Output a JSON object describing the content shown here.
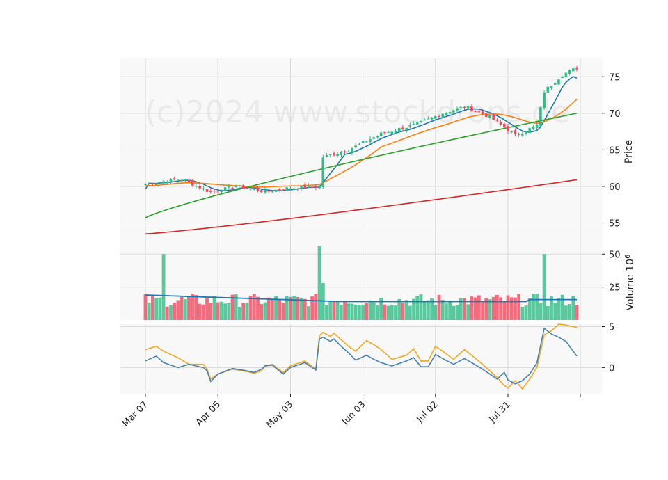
{
  "watermark": "(c)2024 www.stockdrops.de",
  "colors": {
    "up": "#2ebd85",
    "down": "#f6465d",
    "ma_short": "#1f77b4",
    "ma_mid": "#ff7f0e",
    "ma_long": "#2ca02c",
    "ma_200": "#d62728",
    "volume_ma": "#1f77b4",
    "osc_blue": "#4682b4",
    "osc_orange": "#f5a623",
    "panel_bg": "#f8f8f8",
    "grid": "#d9d9d9"
  },
  "chart_data": [
    {
      "type": "candlestick",
      "panel": "price",
      "ylabel": "Price",
      "ylim": [
        52,
        77.5
      ],
      "yticks": [
        55,
        60,
        65,
        70,
        75
      ],
      "x_tick_labels": [
        "Mar 07",
        "Apr 05",
        "May 03",
        "Jun 03",
        "Jul 02",
        "Jul 31",
        ""
      ],
      "x_tick_index": [
        0,
        20,
        40,
        60,
        80,
        100,
        120
      ],
      "n": 120,
      "key_closes": [
        {
          "i": 0,
          "close": 60.4
        },
        {
          "i": 10,
          "close": 61.0
        },
        {
          "i": 18,
          "close": 59.2
        },
        {
          "i": 25,
          "close": 60.0
        },
        {
          "i": 33,
          "close": 59.3
        },
        {
          "i": 40,
          "close": 59.8
        },
        {
          "i": 48,
          "close": 60.0
        },
        {
          "i": 49,
          "close": 64.0
        },
        {
          "i": 56,
          "close": 65.0
        },
        {
          "i": 60,
          "close": 66.0
        },
        {
          "i": 65,
          "close": 67.2
        },
        {
          "i": 75,
          "close": 68.5
        },
        {
          "i": 82,
          "close": 70.0
        },
        {
          "i": 88,
          "close": 70.9
        },
        {
          "i": 95,
          "close": 69.5
        },
        {
          "i": 102,
          "close": 67.0
        },
        {
          "i": 108,
          "close": 68.3
        },
        {
          "i": 110,
          "close": 73.0
        },
        {
          "i": 115,
          "close": 75.3
        },
        {
          "i": 119,
          "close": 76.2
        }
      ],
      "moving_averages": [
        {
          "key": "ma_short",
          "start": 59.6,
          "end": 74.8
        },
        {
          "key": "ma_mid",
          "start": 58.2,
          "end": 71.2
        },
        {
          "key": "ma_long",
          "start": 55.7,
          "end": 70.0
        },
        {
          "key": "ma_200",
          "start": 53.5,
          "end": 60.9
        }
      ]
    },
    {
      "type": "bar",
      "panel": "volume",
      "ylabel": "Volume",
      "ylabel_unit": "10",
      "ylabel_exp": "6",
      "ylim": [
        0,
        57
      ],
      "yticks": [
        25,
        50
      ],
      "spikes": [
        {
          "i": 5,
          "value": 50
        },
        {
          "i": 48,
          "value": 56
        },
        {
          "i": 49,
          "value": 28
        },
        {
          "i": 110,
          "value": 50
        }
      ],
      "base_range": [
        10,
        20
      ],
      "ma_start": 19,
      "ma_end": 14
    },
    {
      "type": "line",
      "panel": "oscillator",
      "ylim": [
        -3.2,
        5.3
      ],
      "yticks": [
        0,
        5
      ],
      "series": [
        {
          "key": "osc_orange",
          "points": [
            [
              0,
              2.2
            ],
            [
              3,
              2.6
            ],
            [
              5,
              2.0
            ],
            [
              9,
              1.2
            ],
            [
              12,
              0.4
            ],
            [
              16,
              0.4
            ],
            [
              17,
              -0.2
            ],
            [
              18,
              -1.4
            ],
            [
              20,
              -0.8
            ],
            [
              24,
              -0.2
            ],
            [
              28,
              -0.5
            ],
            [
              30,
              -0.7
            ],
            [
              32,
              -0.4
            ],
            [
              33,
              0.2
            ],
            [
              35,
              0.4
            ],
            [
              38,
              -0.6
            ],
            [
              40,
              0.2
            ],
            [
              44,
              0.8
            ],
            [
              47,
              -0.2
            ],
            [
              48,
              3.9
            ],
            [
              49,
              4.3
            ],
            [
              51,
              3.8
            ],
            [
              52,
              4.2
            ],
            [
              54,
              3.4
            ],
            [
              56,
              2.6
            ],
            [
              58,
              2.0
            ],
            [
              61,
              3.3
            ],
            [
              63,
              2.8
            ],
            [
              65,
              2.2
            ],
            [
              68,
              1.0
            ],
            [
              72,
              1.5
            ],
            [
              74,
              2.3
            ],
            [
              76,
              0.8
            ],
            [
              78,
              0.8
            ],
            [
              80,
              2.6
            ],
            [
              82,
              2.0
            ],
            [
              85,
              1.0
            ],
            [
              88,
              2.2
            ],
            [
              90,
              1.5
            ],
            [
              93,
              0.4
            ],
            [
              97,
              -1.2
            ],
            [
              99,
              -2.2
            ],
            [
              100,
              -2.5
            ],
            [
              102,
              -1.6
            ],
            [
              104,
              -2.6
            ],
            [
              106,
              -1.4
            ],
            [
              108,
              0.0
            ],
            [
              110,
              4.0
            ],
            [
              112,
              4.5
            ],
            [
              114,
              5.3
            ],
            [
              116,
              5.2
            ],
            [
              119,
              4.9
            ]
          ]
        },
        {
          "key": "osc_blue",
          "points": [
            [
              0,
              0.8
            ],
            [
              3,
              1.4
            ],
            [
              5,
              0.6
            ],
            [
              9,
              0.0
            ],
            [
              12,
              0.4
            ],
            [
              16,
              0.0
            ],
            [
              17,
              -0.4
            ],
            [
              18,
              -1.7
            ],
            [
              20,
              -0.8
            ],
            [
              24,
              -0.1
            ],
            [
              28,
              -0.4
            ],
            [
              30,
              -0.6
            ],
            [
              32,
              -0.2
            ],
            [
              33,
              0.2
            ],
            [
              35,
              0.3
            ],
            [
              38,
              -0.8
            ],
            [
              40,
              0.0
            ],
            [
              44,
              0.6
            ],
            [
              47,
              -0.3
            ],
            [
              48,
              3.5
            ],
            [
              49,
              3.7
            ],
            [
              51,
              3.2
            ],
            [
              52,
              3.5
            ],
            [
              54,
              2.6
            ],
            [
              56,
              1.8
            ],
            [
              58,
              0.9
            ],
            [
              61,
              1.5
            ],
            [
              63,
              1.0
            ],
            [
              65,
              0.6
            ],
            [
              68,
              0.2
            ],
            [
              72,
              0.8
            ],
            [
              74,
              1.2
            ],
            [
              76,
              0.1
            ],
            [
              78,
              0.1
            ],
            [
              80,
              1.6
            ],
            [
              82,
              1.1
            ],
            [
              85,
              0.4
            ],
            [
              88,
              1.1
            ],
            [
              90,
              0.6
            ],
            [
              93,
              -0.2
            ],
            [
              97,
              -1.4
            ],
            [
              99,
              -0.6
            ],
            [
              100,
              -1.5
            ],
            [
              102,
              -2.0
            ],
            [
              104,
              -1.6
            ],
            [
              106,
              -0.8
            ],
            [
              108,
              0.6
            ],
            [
              110,
              4.8
            ],
            [
              112,
              4.1
            ],
            [
              114,
              3.7
            ],
            [
              116,
              3.2
            ],
            [
              119,
              1.4
            ]
          ]
        }
      ]
    }
  ]
}
